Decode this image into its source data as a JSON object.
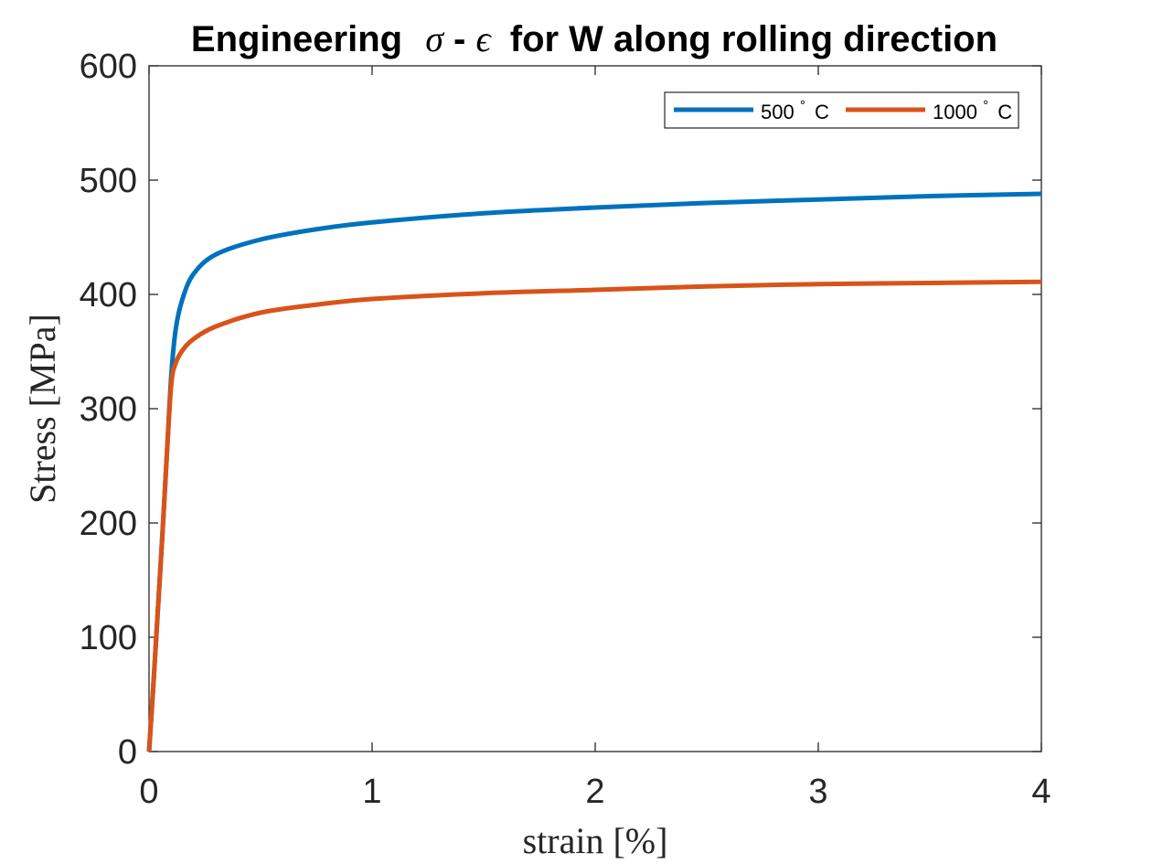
{
  "chart_data": {
    "type": "line",
    "title_parts": {
      "prefix": "Engineering",
      "sigma": "σ",
      "dash": "-",
      "epsilon": "ϵ",
      "suffix": "for W along rolling direction"
    },
    "xlabel": "strain [%]",
    "ylabel": "Stress [MPa]",
    "xlim": [
      0,
      4
    ],
    "ylim": [
      0,
      600
    ],
    "xticks": [
      "0",
      "1",
      "2",
      "3",
      "4"
    ],
    "yticks": [
      "0",
      "100",
      "200",
      "300",
      "400",
      "500",
      "600"
    ],
    "grid": false,
    "legend_position": "top-right",
    "series": [
      {
        "name": "500° C",
        "legend_main": "500",
        "legend_sup": "°",
        "legend_unit": "C",
        "color": "#0072BD",
        "x": [
          0,
          0.02,
          0.04,
          0.06,
          0.08,
          0.1,
          0.12,
          0.15,
          0.2,
          0.3,
          0.5,
          0.75,
          1.0,
          1.5,
          2.0,
          2.5,
          3.0,
          3.5,
          4.0
        ],
        "y": [
          0,
          60,
          125,
          190,
          260,
          330,
          370,
          396,
          418,
          435,
          448,
          457,
          463,
          471,
          476,
          480,
          483,
          486,
          488
        ]
      },
      {
        "name": "1000° C",
        "legend_main": "1000",
        "legend_sup": "°",
        "legend_unit": "C",
        "color": "#D95319",
        "x": [
          0,
          0.02,
          0.04,
          0.06,
          0.08,
          0.1,
          0.12,
          0.15,
          0.2,
          0.3,
          0.5,
          0.75,
          1.0,
          1.5,
          2.0,
          2.5,
          3.0,
          3.5,
          4.0
        ],
        "y": [
          0,
          60,
          125,
          190,
          260,
          322,
          340,
          351,
          361,
          372,
          384,
          391,
          396,
          401,
          404,
          407,
          409,
          410,
          411
        ]
      }
    ]
  }
}
